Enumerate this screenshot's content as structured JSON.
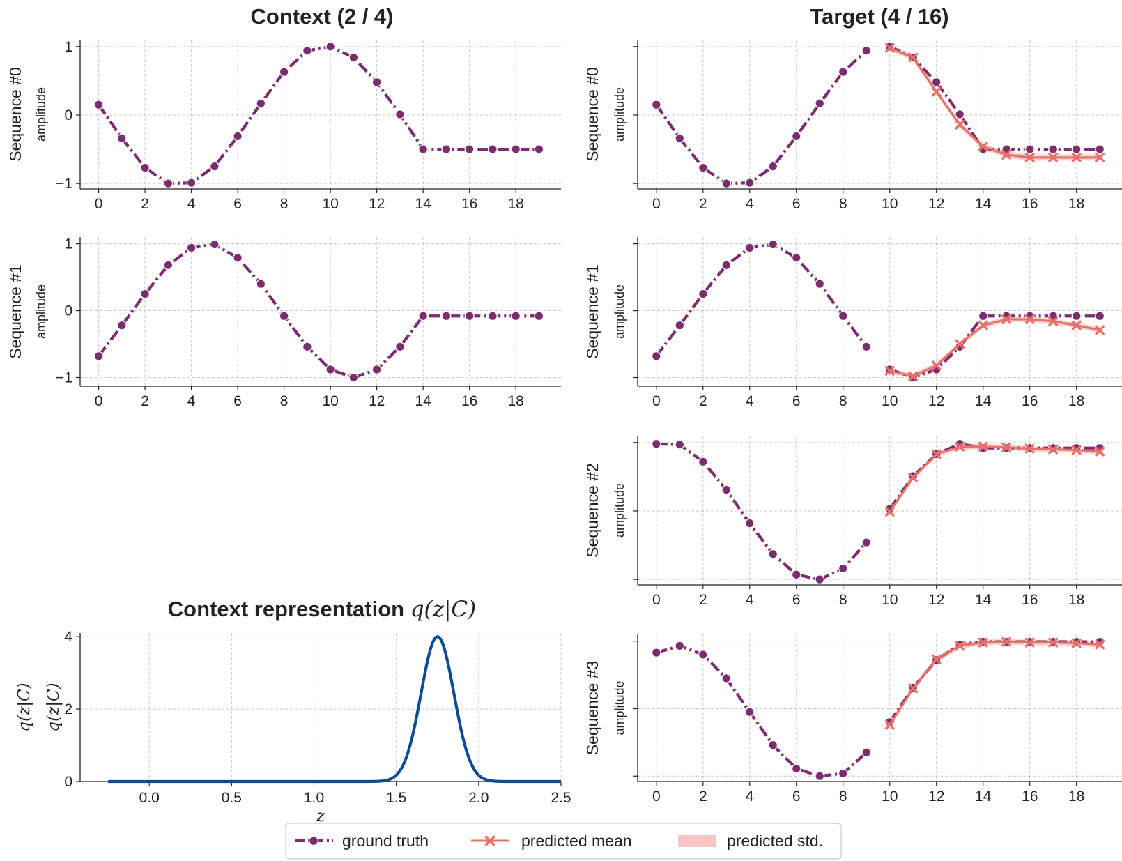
{
  "colors": {
    "ground_truth": "#7b2d6e",
    "predicted_mean": "#e8706a",
    "predicted_std": "#f7c6c2",
    "density": "#0e4d94",
    "grid": "#c8c8c8",
    "axis": "#222222"
  },
  "titles": {
    "context": "Context (2 / 4)",
    "target": "Target (4 / 16)",
    "representation_prefix": "Context representation ",
    "representation_math": "q(z|C)"
  },
  "legend": {
    "ground_truth": "ground truth",
    "predicted_mean": "predicted mean",
    "predicted_std": "predicted std."
  },
  "chart_data": [
    {
      "type": "line",
      "panel": "context",
      "title": "Context (2 / 4)",
      "ylabel": "Sequence #0",
      "ylabel2": "amplitude",
      "xlim": [
        -0.8,
        19.95
      ],
      "ylim": [
        -1.08,
        1.1
      ],
      "xticks": [
        0,
        2,
        4,
        6,
        8,
        10,
        12,
        14,
        16,
        18
      ],
      "yticks": [
        -1,
        0,
        1
      ],
      "ytick_labels": [
        "−1",
        "0",
        "1"
      ],
      "series": [
        {
          "name": "ground truth",
          "x": [
            0,
            1,
            2,
            3,
            4,
            5,
            6,
            7,
            8,
            9,
            10,
            11,
            12,
            13,
            14,
            15,
            16,
            17,
            18,
            19
          ],
          "values": [
            0.15,
            -0.34,
            -0.77,
            -1.0,
            -0.99,
            -0.75,
            -0.31,
            0.17,
            0.63,
            0.94,
            1.0,
            0.84,
            0.48,
            0.01,
            -0.5,
            -0.5,
            -0.5,
            -0.5,
            -0.5,
            -0.5
          ]
        }
      ]
    },
    {
      "type": "line",
      "panel": "context",
      "ylabel": "Sequence #1",
      "ylabel2": "amplitude",
      "xlim": [
        -0.8,
        19.95
      ],
      "ylim": [
        -1.13,
        1.1
      ],
      "xticks": [
        0,
        2,
        4,
        6,
        8,
        10,
        12,
        14,
        16,
        18
      ],
      "yticks": [
        -1,
        0,
        1
      ],
      "ytick_labels": [
        "−1",
        "0",
        "1"
      ],
      "series": [
        {
          "name": "ground truth",
          "x": [
            0,
            1,
            2,
            3,
            4,
            5,
            6,
            7,
            8,
            9,
            10,
            11,
            12,
            13,
            14,
            15,
            16,
            17,
            18,
            19
          ],
          "values": [
            -0.68,
            -0.22,
            0.25,
            0.68,
            0.94,
            0.99,
            0.79,
            0.4,
            -0.08,
            -0.54,
            -0.88,
            -1.0,
            -0.88,
            -0.54,
            -0.08,
            -0.08,
            -0.08,
            -0.08,
            -0.08,
            -0.08
          ]
        }
      ]
    },
    {
      "type": "line",
      "panel": "target",
      "title": "Target (4 / 16)",
      "ylabel": "Sequence #0",
      "ylabel2": "amplitude",
      "xlim": [
        -0.8,
        19.95
      ],
      "ylim": [
        -1.08,
        1.1
      ],
      "xticks": [
        0,
        2,
        4,
        6,
        8,
        10,
        12,
        14,
        16,
        18
      ],
      "yticks": [
        -1,
        0,
        1
      ],
      "series": [
        {
          "name": "ground truth",
          "x": [
            0,
            1,
            2,
            3,
            4,
            5,
            6,
            7,
            8,
            9
          ],
          "values": [
            0.15,
            -0.34,
            -0.77,
            -1.0,
            -0.99,
            -0.75,
            -0.31,
            0.17,
            0.63,
            0.94
          ]
        },
        {
          "name": "ground truth",
          "x": [
            10,
            11,
            12,
            13,
            14,
            15,
            16,
            17,
            18,
            19
          ],
          "values": [
            1.0,
            0.84,
            0.48,
            0.01,
            -0.5,
            -0.5,
            -0.5,
            -0.5,
            -0.5,
            -0.5
          ]
        },
        {
          "name": "predicted mean",
          "x": [
            10,
            11,
            12,
            13,
            14,
            15,
            16,
            17,
            18,
            19
          ],
          "values": [
            0.98,
            0.84,
            0.34,
            -0.14,
            -0.46,
            -0.58,
            -0.62,
            -0.62,
            -0.62,
            -0.62
          ],
          "std": 0.045
        }
      ]
    },
    {
      "type": "line",
      "panel": "target",
      "ylabel": "Sequence #1",
      "ylabel2": "amplitude",
      "xlim": [
        -0.8,
        19.95
      ],
      "ylim": [
        -1.13,
        1.1
      ],
      "xticks": [
        0,
        2,
        4,
        6,
        8,
        10,
        12,
        14,
        16,
        18
      ],
      "yticks": [
        -1,
        0,
        1
      ],
      "series": [
        {
          "name": "ground truth",
          "x": [
            0,
            1,
            2,
            3,
            4,
            5,
            6,
            7,
            8,
            9
          ],
          "values": [
            -0.68,
            -0.22,
            0.25,
            0.68,
            0.94,
            0.99,
            0.79,
            0.4,
            -0.08,
            -0.54
          ]
        },
        {
          "name": "ground truth",
          "x": [
            10,
            11,
            12,
            13,
            14,
            15,
            16,
            17,
            18,
            19
          ],
          "values": [
            -0.88,
            -1.0,
            -0.88,
            -0.54,
            -0.08,
            -0.08,
            -0.08,
            -0.08,
            -0.08,
            -0.08
          ]
        },
        {
          "name": "predicted mean",
          "x": [
            10,
            11,
            12,
            13,
            14,
            15,
            16,
            17,
            18,
            19
          ],
          "values": [
            -0.9,
            -0.98,
            -0.82,
            -0.5,
            -0.22,
            -0.13,
            -0.13,
            -0.16,
            -0.22,
            -0.29
          ],
          "std": 0.04
        }
      ]
    },
    {
      "type": "line",
      "panel": "target",
      "ylabel": "Sequence #2",
      "ylabel2": "amplitude",
      "xlim": [
        -0.8,
        19.95
      ],
      "ylim": [
        -1.08,
        1.1
      ],
      "xticks": [
        0,
        2,
        4,
        6,
        8,
        10,
        12,
        14,
        16,
        18
      ],
      "yticks": [
        -1,
        0,
        1
      ],
      "series": [
        {
          "name": "ground truth",
          "x": [
            0,
            1,
            2,
            3,
            4,
            5,
            6,
            7,
            8,
            9
          ],
          "values": [
            0.98,
            0.97,
            0.72,
            0.31,
            -0.18,
            -0.63,
            -0.93,
            -1.0,
            -0.84,
            -0.46
          ]
        },
        {
          "name": "ground truth",
          "x": [
            10,
            11,
            12,
            13,
            14,
            15,
            16,
            17,
            18,
            19
          ],
          "values": [
            0.03,
            0.51,
            0.83,
            0.98,
            0.92,
            0.92,
            0.92,
            0.92,
            0.92,
            0.92
          ]
        },
        {
          "name": "predicted mean",
          "x": [
            10,
            11,
            12,
            13,
            14,
            15,
            16,
            17,
            18,
            19
          ],
          "values": [
            -0.01,
            0.49,
            0.83,
            0.94,
            0.94,
            0.93,
            0.91,
            0.9,
            0.89,
            0.87
          ],
          "std": 0.04
        }
      ]
    },
    {
      "type": "line",
      "panel": "target",
      "ylabel": "Sequence #3",
      "ylabel2": "amplitude",
      "xlim": [
        -0.8,
        19.95
      ],
      "ylim": [
        -1.08,
        1.1
      ],
      "xticks": [
        0,
        2,
        4,
        6,
        8,
        10,
        12,
        14,
        16,
        18
      ],
      "yticks": [
        -1,
        0,
        1
      ],
      "series": [
        {
          "name": "ground truth",
          "x": [
            0,
            1,
            2,
            3,
            4,
            5,
            6,
            7,
            8,
            9
          ],
          "values": [
            0.83,
            0.93,
            0.8,
            0.45,
            -0.05,
            -0.54,
            -0.89,
            -1.0,
            -0.96,
            -0.65
          ]
        },
        {
          "name": "ground truth",
          "x": [
            10,
            11,
            12,
            13,
            14,
            15,
            16,
            17,
            18,
            19
          ],
          "values": [
            -0.2,
            0.31,
            0.72,
            0.95,
            0.99,
            0.99,
            0.99,
            0.99,
            0.99,
            0.99
          ]
        },
        {
          "name": "predicted mean",
          "x": [
            10,
            11,
            12,
            13,
            14,
            15,
            16,
            17,
            18,
            19
          ],
          "values": [
            -0.24,
            0.3,
            0.73,
            0.93,
            0.98,
            0.99,
            0.98,
            0.98,
            0.97,
            0.95
          ],
          "std": 0.04
        }
      ]
    },
    {
      "type": "line",
      "panel": "representation",
      "title": "Context representation q(z|C)",
      "xlabel": "z",
      "ylabel": "q(z|C)",
      "ylabel2": "q(z|C)",
      "xlim": [
        -0.42,
        2.5
      ],
      "ylim": [
        0,
        4.1
      ],
      "xticks": [
        0.0,
        0.5,
        1.0,
        1.5,
        2.0,
        2.5
      ],
      "xtick_labels": [
        "0.0",
        "0.5",
        "1.0",
        "1.5",
        "2.0",
        "2.5"
      ],
      "yticks": [
        0,
        2,
        4
      ],
      "ytick_labels": [
        "0",
        "2",
        "4"
      ],
      "series": [
        {
          "name": "density",
          "distribution": "normal",
          "mean": 1.75,
          "std": 0.1,
          "peak": 4.0,
          "x_range": [
            -0.25,
            2.5
          ]
        }
      ]
    }
  ]
}
